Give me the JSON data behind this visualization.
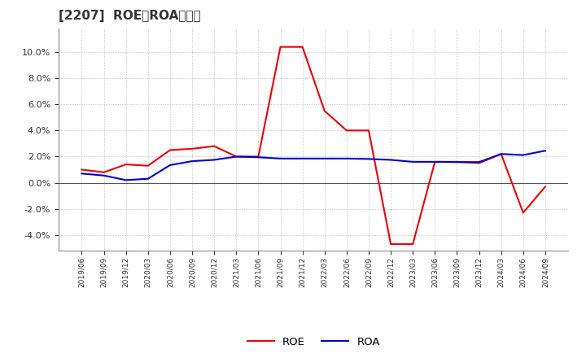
{
  "title": "[2207]  ROE、ROAの推移",
  "x_labels": [
    "2019/06",
    "2019/09",
    "2019/12",
    "2020/03",
    "2020/06",
    "2020/09",
    "2020/12",
    "2021/03",
    "2021/06",
    "2021/09",
    "2021/12",
    "2022/03",
    "2022/06",
    "2022/09",
    "2022/12",
    "2023/03",
    "2023/06",
    "2023/09",
    "2023/12",
    "2024/03",
    "2024/06",
    "2024/09"
  ],
  "roe": [
    1.0,
    0.8,
    1.4,
    1.3,
    2.5,
    2.6,
    2.8,
    2.0,
    2.0,
    10.4,
    10.4,
    5.5,
    4.0,
    4.0,
    -4.7,
    -4.7,
    1.6,
    1.6,
    1.5,
    2.2,
    -2.3,
    -0.3
  ],
  "roa": [
    0.7,
    0.55,
    0.2,
    0.3,
    1.35,
    1.65,
    1.75,
    2.0,
    1.95,
    1.85,
    1.85,
    1.85,
    1.85,
    1.82,
    1.75,
    1.6,
    1.6,
    1.58,
    1.58,
    2.2,
    2.12,
    2.45
  ],
  "roe_color": "#e8000a",
  "roa_color": "#0000cc",
  "background_color": "#ffffff",
  "plot_bg_color": "#ffffff",
  "grid_color": "#aaaaaa",
  "ylim": [
    -5.2,
    11.8
  ],
  "yticks": [
    -4.0,
    -2.0,
    0.0,
    2.0,
    4.0,
    6.0,
    8.0,
    10.0
  ],
  "title_fontsize": 11,
  "legend_labels": [
    "ROE",
    "ROA"
  ],
  "zero_line_color": "#555555",
  "spine_color": "#888888"
}
